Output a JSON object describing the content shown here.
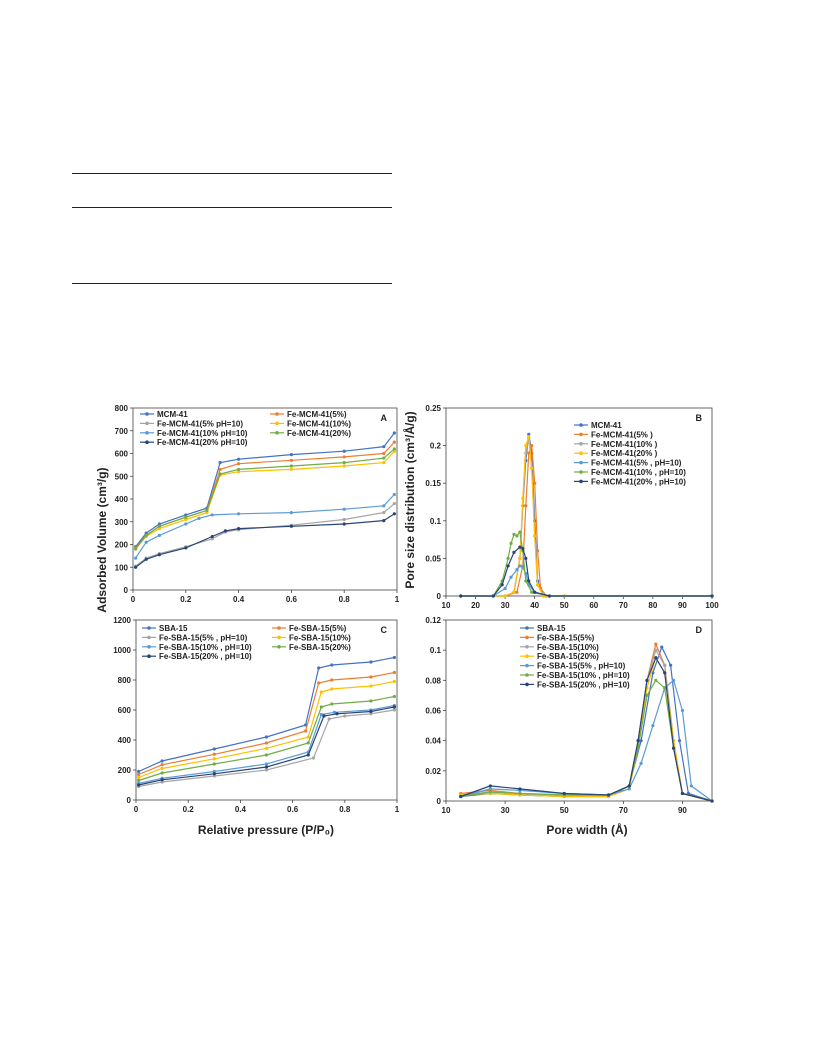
{
  "figure": {
    "y_label_left_top": "Adsorbed Volume (cm³/g)",
    "y_label_right_top": "Pore size distribution (cm³/Å/g)",
    "x_label_left_bottom": "Relative pressure (P/P₀)",
    "x_label_right_bottom": "Pore width (Å)"
  },
  "chart_data": [
    {
      "id": "A",
      "panel_letter": "A",
      "type": "line",
      "xlim": [
        0,
        1
      ],
      "ylim": [
        0,
        800
      ],
      "x_ticks": [
        0,
        0.2,
        0.4,
        0.6,
        0.8,
        1
      ],
      "x_tick_labels": [
        "0",
        "0.2",
        "0.4",
        "0.6",
        "0.8",
        "1"
      ],
      "y_ticks": [
        0,
        100,
        200,
        300,
        400,
        500,
        600,
        700,
        800
      ],
      "y_tick_labels": [
        "0",
        "100",
        "200",
        "300",
        "400",
        "500",
        "600",
        "700",
        "800"
      ],
      "legend_cols": 2,
      "legend_position": "top",
      "series": [
        {
          "name": "MCM-41",
          "color": "#4472c4",
          "x": [
            0.01,
            0.05,
            0.1,
            0.2,
            0.28,
            0.33,
            0.4,
            0.6,
            0.8,
            0.95,
            0.99
          ],
          "y": [
            190,
            250,
            290,
            330,
            360,
            560,
            575,
            595,
            610,
            630,
            690
          ]
        },
        {
          "name": "Fe-MCM-41(5%)",
          "color": "#ed7d31",
          "x": [
            0.01,
            0.05,
            0.1,
            0.2,
            0.28,
            0.33,
            0.4,
            0.6,
            0.8,
            0.95,
            0.99
          ],
          "y": [
            185,
            240,
            280,
            320,
            350,
            530,
            555,
            570,
            585,
            600,
            650
          ]
        },
        {
          "name": "Fe-MCM-41(5% pH=10)",
          "color": "#a5a5a5",
          "x": [
            0.01,
            0.05,
            0.1,
            0.2,
            0.3,
            0.35,
            0.4,
            0.6,
            0.8,
            0.95,
            0.99
          ],
          "y": [
            105,
            140,
            160,
            190,
            225,
            255,
            265,
            285,
            310,
            340,
            380
          ]
        },
        {
          "name": "Fe-MCM-41(10%)",
          "color": "#ffc000",
          "x": [
            0.01,
            0.05,
            0.1,
            0.2,
            0.28,
            0.33,
            0.4,
            0.6,
            0.8,
            0.95,
            0.99
          ],
          "y": [
            180,
            235,
            270,
            310,
            340,
            505,
            520,
            530,
            545,
            560,
            610
          ]
        },
        {
          "name": "Fe-MCM-41(10% pH=10)",
          "color": "#5b9bd5",
          "x": [
            0.01,
            0.05,
            0.1,
            0.2,
            0.25,
            0.3,
            0.4,
            0.6,
            0.8,
            0.95,
            0.99
          ],
          "y": [
            140,
            210,
            240,
            290,
            315,
            330,
            335,
            340,
            355,
            370,
            420
          ]
        },
        {
          "name": "Fe-MCM-41(20%)",
          "color": "#70ad47",
          "x": [
            0.01,
            0.05,
            0.1,
            0.2,
            0.28,
            0.33,
            0.4,
            0.6,
            0.8,
            0.95,
            0.99
          ],
          "y": [
            180,
            240,
            280,
            320,
            350,
            510,
            530,
            545,
            560,
            580,
            620
          ]
        },
        {
          "name": "Fe-MCM-41(20% pH=10)",
          "color": "#264478",
          "x": [
            0.01,
            0.05,
            0.1,
            0.2,
            0.3,
            0.35,
            0.4,
            0.6,
            0.8,
            0.95,
            0.99
          ],
          "y": [
            100,
            135,
            155,
            185,
            235,
            260,
            270,
            280,
            290,
            305,
            335
          ]
        }
      ]
    },
    {
      "id": "B",
      "panel_letter": "B",
      "type": "line",
      "xlim": [
        10,
        100
      ],
      "ylim": [
        0,
        0.25
      ],
      "x_ticks": [
        10,
        20,
        30,
        40,
        50,
        60,
        70,
        80,
        90,
        100
      ],
      "x_tick_labels": [
        "10",
        "20",
        "30",
        "40",
        "50",
        "60",
        "70",
        "80",
        "90",
        "100"
      ],
      "y_ticks": [
        0,
        0.05,
        0.1,
        0.15,
        0.2,
        0.25
      ],
      "y_tick_labels": [
        "0",
        "0.05",
        "0.1",
        "0.15",
        "0.2",
        "0.25"
      ],
      "legend_cols": 1,
      "legend_position": "top-right",
      "series": [
        {
          "name": "MCM-41",
          "color": "#4472c4",
          "x": [
            15,
            30,
            33,
            35,
            36,
            37,
            38,
            39,
            40,
            41,
            43,
            50,
            100
          ],
          "y": [
            0,
            0,
            0.005,
            0.05,
            0.12,
            0.18,
            0.215,
            0.19,
            0.1,
            0.02,
            0,
            0,
            0
          ]
        },
        {
          "name": "Fe-MCM-41(5% )",
          "color": "#ed7d31",
          "x": [
            15,
            30,
            34,
            36,
            37,
            38,
            39,
            40,
            41,
            42,
            44,
            50,
            100
          ],
          "y": [
            0,
            0,
            0.005,
            0.04,
            0.12,
            0.19,
            0.2,
            0.15,
            0.06,
            0.01,
            0,
            0,
            0
          ]
        },
        {
          "name": "Fe-MCM-41(10% )",
          "color": "#a5a5a5",
          "x": [
            15,
            30,
            33,
            35,
            36,
            37,
            38,
            39,
            40,
            41,
            43,
            50,
            100
          ],
          "y": [
            0,
            0,
            0.005,
            0.05,
            0.12,
            0.19,
            0.21,
            0.17,
            0.08,
            0.015,
            0,
            0,
            0
          ]
        },
        {
          "name": "Fe-MCM-41(20% )",
          "color": "#ffc000",
          "x": [
            15,
            30,
            33,
            35,
            36,
            37,
            38,
            39,
            40,
            41,
            43,
            50,
            100
          ],
          "y": [
            0,
            0,
            0.005,
            0.05,
            0.13,
            0.2,
            0.212,
            0.17,
            0.08,
            0.015,
            0,
            0,
            0
          ]
        },
        {
          "name": "Fe-MCM-41(5% , pH=10)",
          "color": "#5b9bd5",
          "x": [
            15,
            26,
            30,
            32,
            34,
            35,
            36,
            37,
            38,
            40,
            45,
            100
          ],
          "y": [
            0,
            0,
            0.01,
            0.025,
            0.035,
            0.04,
            0.038,
            0.03,
            0.015,
            0.005,
            0,
            0
          ]
        },
        {
          "name": "Fe-MCM-41(10% , pH=10)",
          "color": "#70ad47",
          "x": [
            15,
            26,
            29,
            31,
            32,
            33,
            34,
            35,
            36,
            37,
            39,
            45,
            100
          ],
          "y": [
            0,
            0,
            0.02,
            0.05,
            0.07,
            0.082,
            0.08,
            0.085,
            0.06,
            0.02,
            0.005,
            0,
            0
          ]
        },
        {
          "name": "Fe-MCM-41(20% , pH=10)",
          "color": "#264478",
          "x": [
            15,
            26,
            29,
            31,
            33,
            35,
            36,
            37,
            38,
            40,
            45,
            100
          ],
          "y": [
            0,
            0,
            0.015,
            0.04,
            0.058,
            0.065,
            0.063,
            0.05,
            0.02,
            0.005,
            0,
            0
          ]
        }
      ]
    },
    {
      "id": "C",
      "panel_letter": "C",
      "type": "line",
      "xlim": [
        0,
        1
      ],
      "ylim": [
        0,
        1200
      ],
      "x_ticks": [
        0,
        0.2,
        0.4,
        0.6,
        0.8,
        1
      ],
      "x_tick_labels": [
        "0",
        "0.2",
        "0.4",
        "0.6",
        "0.8",
        "1"
      ],
      "y_ticks": [
        0,
        200,
        400,
        600,
        800,
        1000,
        1200
      ],
      "y_tick_labels": [
        "0",
        "200",
        "400",
        "600",
        "800",
        "1000",
        "1200"
      ],
      "legend_cols": 2,
      "legend_position": "top",
      "series": [
        {
          "name": "SBA-15",
          "color": "#4472c4",
          "x": [
            0.01,
            0.1,
            0.3,
            0.5,
            0.65,
            0.7,
            0.75,
            0.9,
            0.99
          ],
          "y": [
            190,
            260,
            340,
            420,
            500,
            880,
            900,
            920,
            950
          ]
        },
        {
          "name": "Fe-SBA-15(5%)",
          "color": "#ed7d31",
          "x": [
            0.01,
            0.1,
            0.3,
            0.5,
            0.65,
            0.7,
            0.75,
            0.9,
            0.99
          ],
          "y": [
            170,
            235,
            305,
            380,
            460,
            780,
            800,
            820,
            850
          ]
        },
        {
          "name": "Fe-SBA-15(5% , pH=10)",
          "color": "#a5a5a5",
          "x": [
            0.01,
            0.1,
            0.3,
            0.5,
            0.68,
            0.74,
            0.8,
            0.9,
            0.99
          ],
          "y": [
            90,
            120,
            160,
            200,
            280,
            540,
            560,
            575,
            600
          ]
        },
        {
          "name": "Fe-SBA-15(10%)",
          "color": "#ffc000",
          "x": [
            0.01,
            0.1,
            0.3,
            0.5,
            0.66,
            0.71,
            0.75,
            0.9,
            0.99
          ],
          "y": [
            150,
            210,
            275,
            345,
            420,
            720,
            740,
            760,
            790
          ]
        },
        {
          "name": "Fe-SBA-15(10% , pH=10)",
          "color": "#5b9bd5",
          "x": [
            0.01,
            0.1,
            0.3,
            0.5,
            0.66,
            0.71,
            0.76,
            0.9,
            0.99
          ],
          "y": [
            110,
            145,
            190,
            240,
            320,
            570,
            585,
            600,
            630
          ]
        },
        {
          "name": "Fe-SBA-15(20%)",
          "color": "#70ad47",
          "x": [
            0.01,
            0.1,
            0.3,
            0.5,
            0.66,
            0.71,
            0.75,
            0.9,
            0.99
          ],
          "y": [
            130,
            180,
            240,
            300,
            380,
            620,
            640,
            660,
            690
          ]
        },
        {
          "name": "Fe-SBA-15(20% , pH=10)",
          "color": "#264478",
          "x": [
            0.01,
            0.1,
            0.3,
            0.5,
            0.66,
            0.72,
            0.77,
            0.9,
            0.99
          ],
          "y": [
            100,
            135,
            175,
            220,
            300,
            560,
            575,
            590,
            620
          ]
        }
      ]
    },
    {
      "id": "D",
      "panel_letter": "D",
      "type": "line",
      "xlim": [
        10,
        100
      ],
      "ylim": [
        0,
        0.12
      ],
      "x_ticks": [
        10,
        30,
        50,
        70,
        90
      ],
      "x_tick_labels": [
        "10",
        "30",
        "50",
        "70",
        "90"
      ],
      "y_ticks": [
        0,
        0.02,
        0.04,
        0.06,
        0.08,
        0.1,
        0.12
      ],
      "y_tick_labels": [
        "0",
        "0.02",
        "0.04",
        "0.06",
        "0.08",
        "0.1",
        "0.12"
      ],
      "legend_cols": 1,
      "legend_position": "top-left",
      "series": [
        {
          "name": "SBA-15",
          "color": "#4472c4",
          "x": [
            15,
            25,
            35,
            50,
            65,
            72,
            76,
            80,
            83,
            86,
            89,
            92,
            100
          ],
          "y": [
            0.003,
            0.005,
            0.004,
            0.003,
            0.003,
            0.01,
            0.04,
            0.085,
            0.102,
            0.09,
            0.04,
            0.005,
            0
          ]
        },
        {
          "name": "Fe-SBA-15(5%)",
          "color": "#ed7d31",
          "x": [
            15,
            25,
            35,
            50,
            65,
            72,
            75,
            78,
            81,
            84,
            87,
            90,
            100
          ],
          "y": [
            0.005,
            0.007,
            0.005,
            0.004,
            0.004,
            0.01,
            0.04,
            0.08,
            0.104,
            0.09,
            0.04,
            0.005,
            0
          ]
        },
        {
          "name": "Fe-SBA-15(10%)",
          "color": "#a5a5a5",
          "x": [
            15,
            25,
            35,
            50,
            65,
            72,
            75,
            78,
            81,
            84,
            87,
            90,
            100
          ],
          "y": [
            0.004,
            0.006,
            0.005,
            0.004,
            0.004,
            0.01,
            0.04,
            0.08,
            0.1,
            0.09,
            0.04,
            0.005,
            0
          ]
        },
        {
          "name": "Fe-SBA-15(20%)",
          "color": "#ffc000",
          "x": [
            15,
            25,
            35,
            50,
            65,
            72,
            75,
            78,
            81,
            84,
            87,
            90,
            100
          ],
          "y": [
            0.004,
            0.005,
            0.004,
            0.003,
            0.003,
            0.008,
            0.035,
            0.075,
            0.095,
            0.085,
            0.04,
            0.005,
            0
          ]
        },
        {
          "name": "Fe-SBA-15(5% , pH=10)",
          "color": "#5b9bd5",
          "x": [
            15,
            25,
            35,
            50,
            65,
            72,
            76,
            80,
            84,
            87,
            90,
            93,
            100
          ],
          "y": [
            0.003,
            0.008,
            0.007,
            0.005,
            0.004,
            0.008,
            0.025,
            0.05,
            0.075,
            0.08,
            0.06,
            0.01,
            0
          ]
        },
        {
          "name": "Fe-SBA-15(10% , pH=10)",
          "color": "#70ad47",
          "x": [
            15,
            25,
            35,
            50,
            65,
            72,
            75,
            78,
            81,
            84,
            87,
            90,
            100
          ],
          "y": [
            0.003,
            0.006,
            0.005,
            0.004,
            0.004,
            0.01,
            0.035,
            0.07,
            0.08,
            0.075,
            0.035,
            0.005,
            0
          ]
        },
        {
          "name": "Fe-SBA-15(20% , pH=10)",
          "color": "#264478",
          "x": [
            15,
            25,
            35,
            50,
            65,
            72,
            75,
            78,
            81,
            84,
            87,
            90,
            100
          ],
          "y": [
            0.003,
            0.01,
            0.008,
            0.005,
            0.004,
            0.01,
            0.04,
            0.08,
            0.095,
            0.085,
            0.035,
            0.005,
            0
          ]
        }
      ]
    }
  ]
}
